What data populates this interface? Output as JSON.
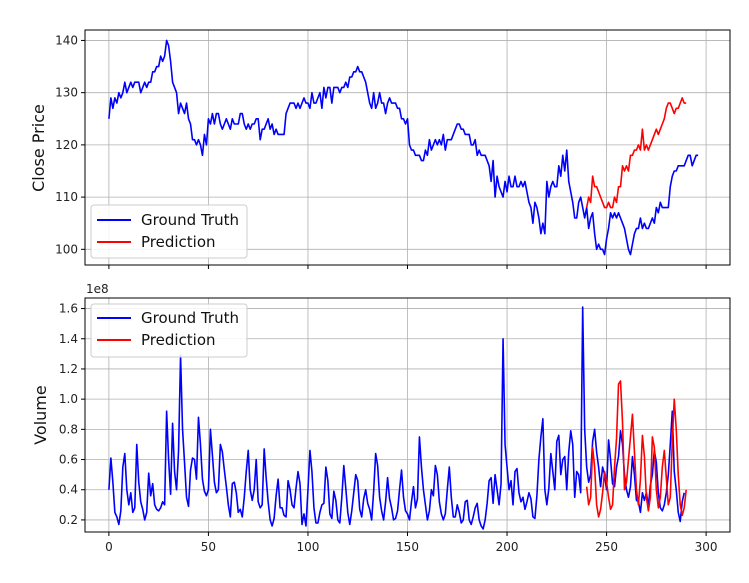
{
  "chart_data": [
    {
      "type": "line",
      "ylabel": "Close Price",
      "xlim": [
        -12,
        312
      ],
      "ylim": [
        97,
        142
      ],
      "xticks": [
        0,
        50,
        100,
        150,
        200,
        250,
        300
      ],
      "yticks": [
        100,
        110,
        120,
        130,
        140
      ],
      "grid": true,
      "legend": "bottom-left",
      "series": [
        {
          "name": "Ground Truth",
          "color": "#0000ff",
          "x_start": 0,
          "values": [
            125,
            129,
            127,
            129,
            128,
            130,
            129,
            130,
            132,
            130,
            131,
            132,
            131,
            132,
            132,
            132,
            130,
            131,
            132,
            131,
            132,
            132,
            134,
            134,
            135,
            135,
            137,
            136,
            137,
            140,
            139,
            136,
            132,
            131,
            130,
            126,
            128,
            127,
            126,
            128,
            125,
            124,
            121,
            121,
            120,
            121,
            120,
            118,
            122,
            120,
            125,
            124,
            126,
            124,
            126,
            126,
            124,
            123,
            124,
            125,
            124,
            123,
            125,
            124,
            124,
            124,
            126,
            126,
            124,
            123,
            124,
            123,
            124,
            124,
            125,
            125,
            121,
            123,
            123,
            124,
            125,
            123,
            124,
            122,
            123,
            122,
            122,
            122,
            122,
            126,
            127,
            128,
            128,
            128,
            127,
            128,
            127,
            128,
            129,
            128,
            128,
            127,
            130,
            128,
            128,
            129,
            130,
            127,
            131,
            129,
            131,
            131,
            128,
            131,
            131,
            131,
            130,
            131,
            131,
            132,
            131,
            133,
            133,
            134,
            134,
            135,
            134,
            134,
            133,
            132,
            130,
            128,
            127,
            130,
            127,
            128,
            130,
            128,
            128,
            126,
            128,
            129,
            128,
            128,
            128,
            127,
            127,
            125,
            125,
            124,
            125,
            120,
            119,
            119,
            118,
            118,
            118,
            117,
            117,
            119,
            118,
            121,
            119,
            120,
            121,
            120,
            121,
            120,
            122,
            119,
            121,
            121,
            121,
            122,
            123,
            124,
            124,
            123,
            123,
            122,
            122,
            122,
            120,
            120,
            121,
            118,
            119,
            118,
            118,
            118,
            117,
            116,
            113,
            117,
            110,
            114,
            112,
            111,
            110,
            113,
            111,
            114,
            112,
            112,
            114,
            112,
            112,
            113,
            112,
            113,
            111,
            109,
            108,
            105,
            109,
            108,
            106,
            103,
            105,
            103,
            113,
            110,
            112,
            113,
            112,
            112,
            116,
            114,
            118,
            115,
            119,
            113,
            111,
            109,
            106,
            106,
            109,
            110,
            108,
            106,
            108,
            104,
            106,
            107,
            103,
            100,
            101,
            100,
            100,
            99,
            102,
            104,
            107,
            106,
            107,
            106,
            107,
            106,
            105,
            104,
            102,
            100,
            99,
            101,
            103,
            104,
            104,
            106,
            104,
            105,
            104,
            104,
            105,
            106,
            105,
            108,
            107,
            109,
            108,
            108,
            108,
            108,
            112,
            114,
            115,
            115,
            116,
            116,
            116,
            116,
            117,
            118,
            118,
            116,
            117,
            118,
            118
          ]
        },
        {
          "name": "Prediction",
          "color": "#ff0000",
          "x_start": 240,
          "values": [
            108,
            110,
            109,
            114,
            112,
            112,
            111,
            110,
            109,
            108,
            108,
            109,
            108,
            108,
            110,
            109,
            112,
            112,
            116,
            115,
            116,
            115,
            118,
            118,
            119,
            119,
            120,
            119,
            123,
            119,
            120,
            119,
            120,
            121,
            122,
            123,
            122,
            123,
            124,
            125,
            127,
            128,
            128,
            127,
            126,
            127,
            127,
            128,
            129,
            128,
            128
          ]
        }
      ]
    },
    {
      "type": "line",
      "ylabel": "Volume",
      "offset_text": "1e8",
      "xlim": [
        -12,
        312
      ],
      "ylim": [
        0.12,
        1.67
      ],
      "xticks": [
        0,
        50,
        100,
        150,
        200,
        250,
        300
      ],
      "yticks": [
        0.2,
        0.4,
        0.6,
        0.8,
        1.0,
        1.2,
        1.4,
        1.6
      ],
      "ytick_labels": [
        "0.2",
        "0.4",
        "0.6",
        "0.8",
        "1.0",
        "1.2",
        "1.4",
        "1.6"
      ],
      "xtick_labels": [
        "0",
        "50",
        "100",
        "150",
        "200",
        "250",
        "300"
      ],
      "grid": true,
      "legend": "top-left",
      "series": [
        {
          "name": "Ground Truth",
          "color": "#0000ff",
          "x_start": 0,
          "values": [
            0.4,
            0.61,
            0.45,
            0.25,
            0.22,
            0.17,
            0.26,
            0.55,
            0.64,
            0.4,
            0.3,
            0.38,
            0.25,
            0.28,
            0.7,
            0.45,
            0.32,
            0.27,
            0.2,
            0.25,
            0.51,
            0.36,
            0.44,
            0.3,
            0.27,
            0.26,
            0.28,
            0.32,
            0.3,
            0.92,
            0.6,
            0.37,
            0.84,
            0.52,
            0.4,
            0.66,
            1.29,
            0.8,
            0.58,
            0.35,
            0.29,
            0.53,
            0.61,
            0.6,
            0.47,
            0.88,
            0.7,
            0.47,
            0.39,
            0.36,
            0.4,
            0.8,
            0.63,
            0.45,
            0.38,
            0.4,
            0.7,
            0.65,
            0.53,
            0.42,
            0.3,
            0.22,
            0.44,
            0.45,
            0.38,
            0.25,
            0.27,
            0.22,
            0.35,
            0.52,
            0.66,
            0.4,
            0.33,
            0.4,
            0.6,
            0.32,
            0.28,
            0.3,
            0.67,
            0.48,
            0.32,
            0.2,
            0.16,
            0.21,
            0.36,
            0.47,
            0.28,
            0.28,
            0.23,
            0.22,
            0.46,
            0.4,
            0.3,
            0.28,
            0.41,
            0.52,
            0.44,
            0.17,
            0.24,
            0.16,
            0.4,
            0.66,
            0.52,
            0.28,
            0.18,
            0.18,
            0.25,
            0.3,
            0.31,
            0.55,
            0.46,
            0.24,
            0.21,
            0.39,
            0.33,
            0.2,
            0.18,
            0.35,
            0.56,
            0.41,
            0.25,
            0.17,
            0.26,
            0.38,
            0.5,
            0.46,
            0.27,
            0.22,
            0.34,
            0.4,
            0.31,
            0.27,
            0.2,
            0.39,
            0.64,
            0.56,
            0.35,
            0.26,
            0.2,
            0.32,
            0.48,
            0.34,
            0.28,
            0.2,
            0.21,
            0.26,
            0.4,
            0.53,
            0.35,
            0.26,
            0.24,
            0.2,
            0.32,
            0.42,
            0.28,
            0.34,
            0.75,
            0.55,
            0.4,
            0.3,
            0.2,
            0.26,
            0.4,
            0.36,
            0.56,
            0.5,
            0.32,
            0.24,
            0.2,
            0.24,
            0.4,
            0.55,
            0.35,
            0.22,
            0.22,
            0.3,
            0.25,
            0.18,
            0.2,
            0.32,
            0.33,
            0.2,
            0.17,
            0.22,
            0.28,
            0.31,
            0.2,
            0.16,
            0.14,
            0.2,
            0.31,
            0.46,
            0.48,
            0.31,
            0.5,
            0.4,
            0.3,
            0.44,
            1.4,
            0.7,
            0.55,
            0.4,
            0.46,
            0.3,
            0.52,
            0.54,
            0.38,
            0.32,
            0.35,
            0.27,
            0.32,
            0.38,
            0.34,
            0.22,
            0.21,
            0.36,
            0.6,
            0.75,
            0.87,
            0.4,
            0.3,
            0.41,
            0.64,
            0.52,
            0.4,
            0.72,
            0.76,
            0.5,
            0.6,
            0.62,
            0.4,
            0.65,
            0.79,
            0.7,
            0.35,
            0.52,
            0.5,
            0.38,
            1.61,
            0.8,
            0.55,
            0.45,
            0.5,
            0.72,
            0.8,
            0.65,
            0.55,
            0.42,
            0.55,
            0.5,
            0.4,
            0.73,
            0.6,
            0.44,
            0.42,
            0.55,
            0.62,
            0.79,
            0.7,
            0.5,
            0.4,
            0.35,
            0.42,
            0.62,
            0.5,
            0.33,
            0.32,
            0.25,
            0.38,
            0.33,
            0.38,
            0.29,
            0.43,
            0.5,
            0.66,
            0.58,
            0.38,
            0.28,
            0.26,
            0.3,
            0.38,
            0.5,
            0.7,
            0.92,
            0.52,
            0.4,
            0.25,
            0.19,
            0.32,
            0.38
          ]
        },
        {
          "name": "Prediction",
          "color": "#ff0000",
          "x_start": 240,
          "values": [
            0.42,
            0.3,
            0.35,
            0.68,
            0.55,
            0.3,
            0.22,
            0.27,
            0.38,
            0.52,
            0.45,
            0.35,
            0.27,
            0.3,
            0.55,
            0.74,
            1.1,
            1.12,
            0.85,
            0.4,
            0.45,
            0.6,
            0.75,
            0.9,
            0.65,
            0.4,
            0.3,
            0.47,
            0.76,
            0.62,
            0.35,
            0.26,
            0.35,
            0.75,
            0.68,
            0.4,
            0.28,
            0.35,
            0.55,
            0.66,
            0.48,
            0.3,
            0.35,
            0.72,
            1.0,
            0.8,
            0.5,
            0.3,
            0.23,
            0.28,
            0.4
          ]
        }
      ]
    }
  ]
}
